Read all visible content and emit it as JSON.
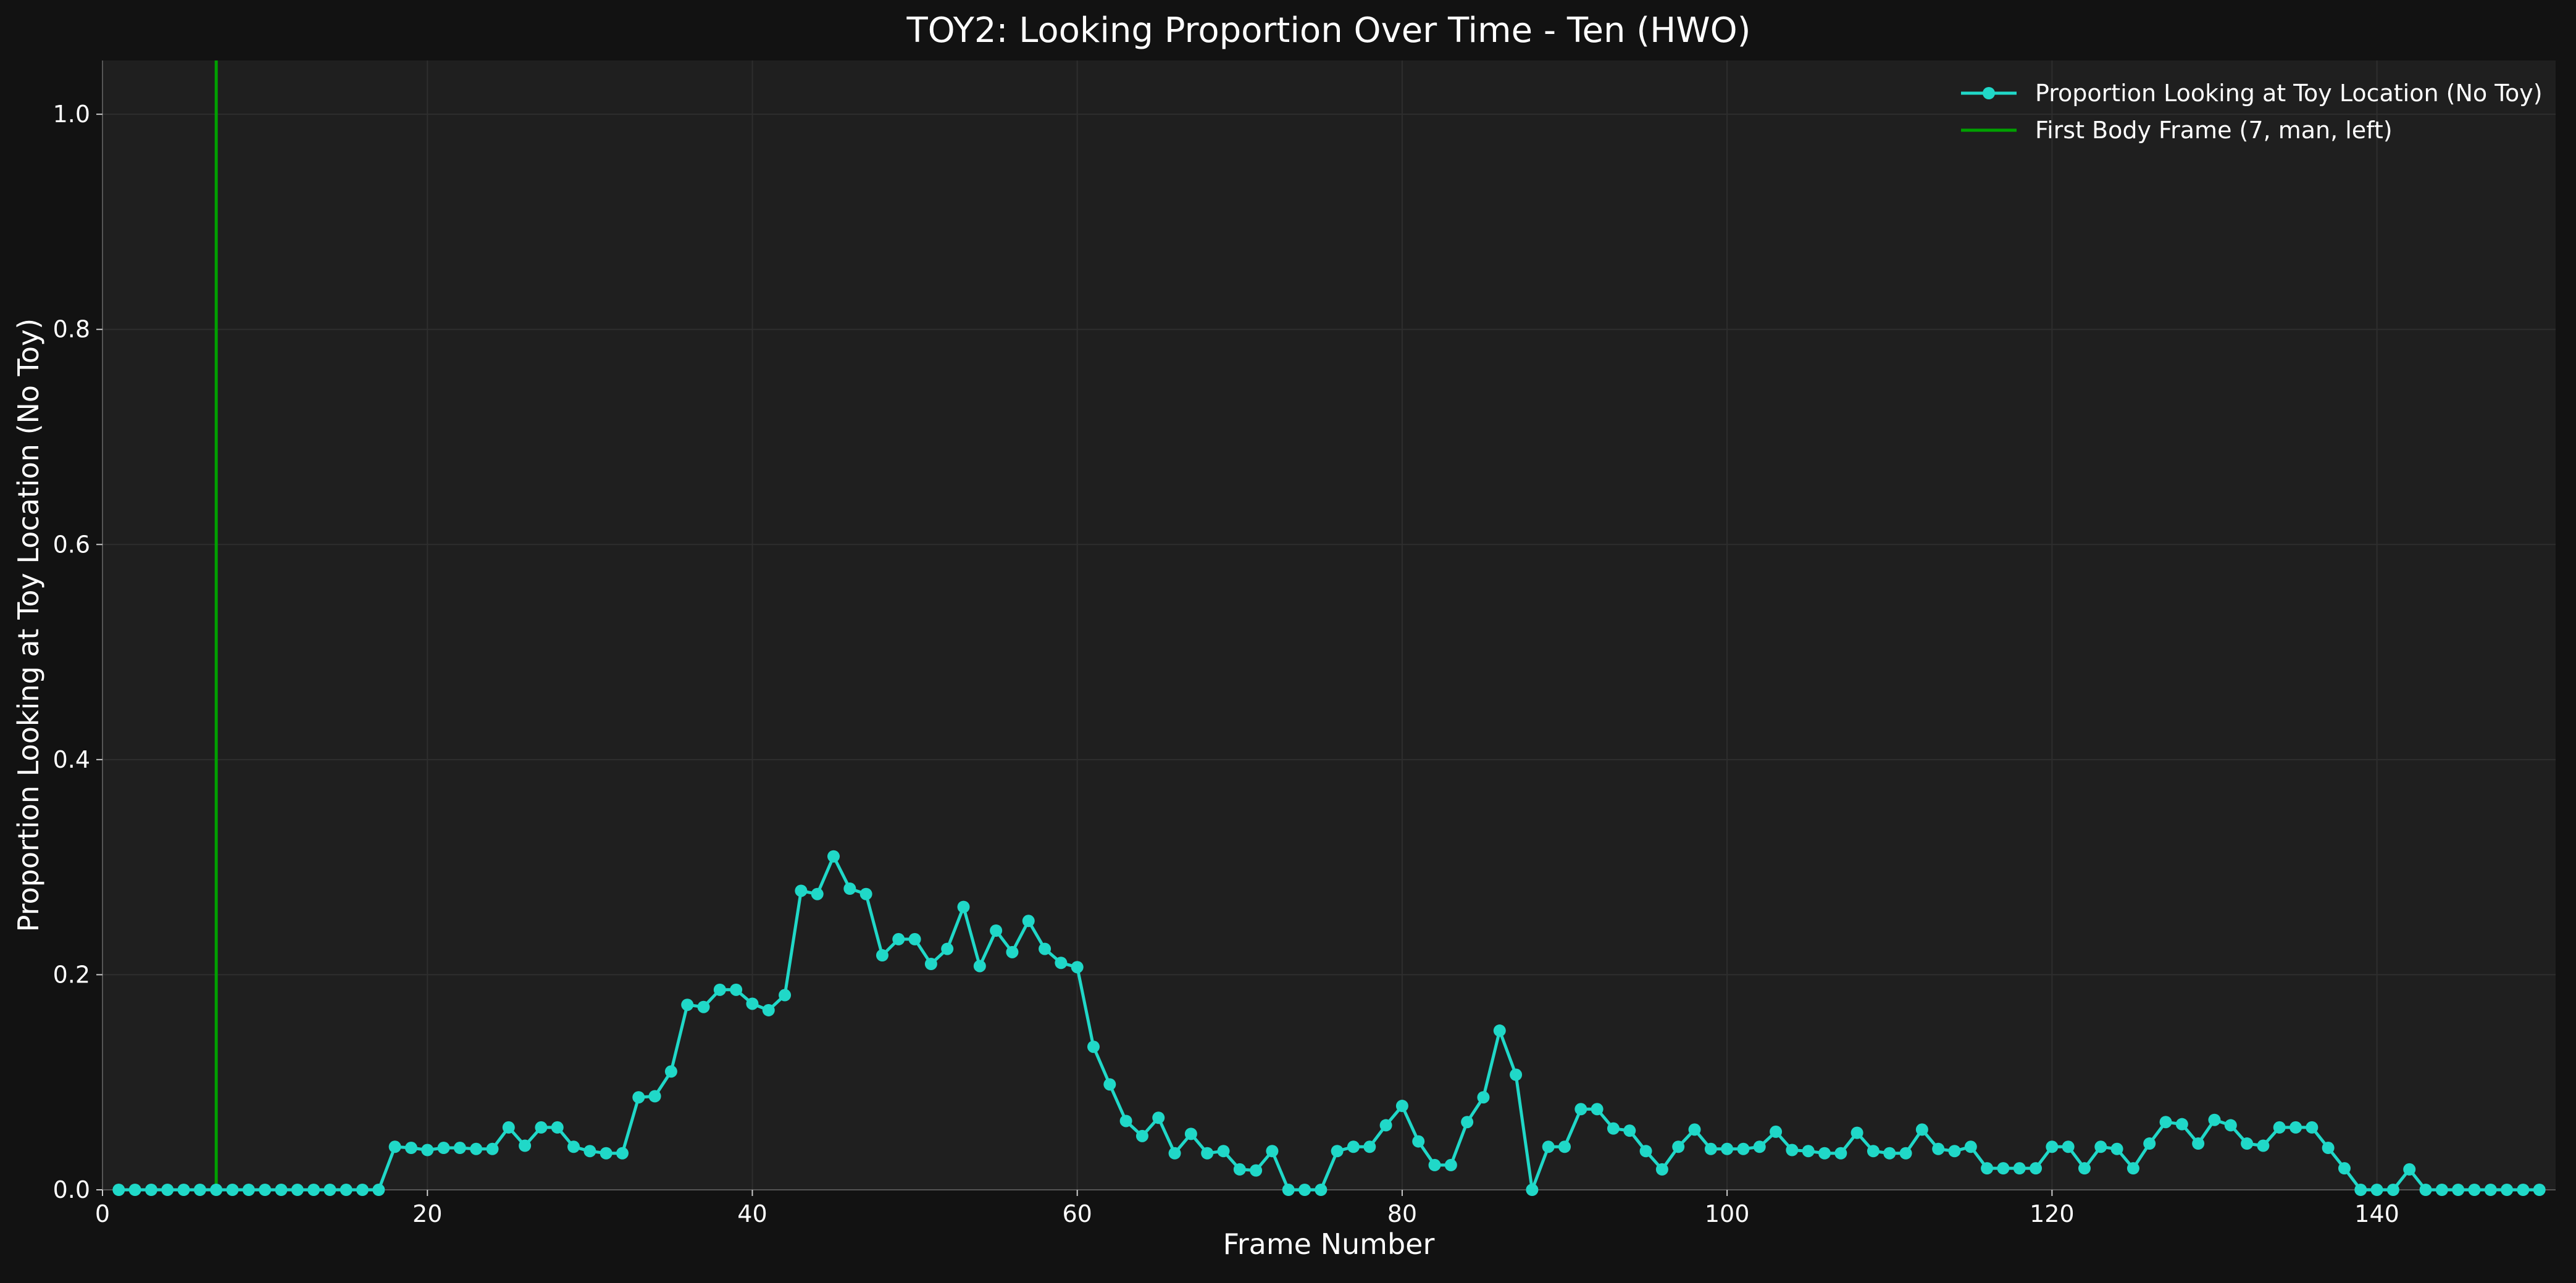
{
  "chart_data": {
    "type": "line",
    "title": "TOY2: Looking Proportion Over Time - Ten (HWO)",
    "xlabel": "Frame Number",
    "ylabel": "Proportion Looking at Toy Location (No Toy)",
    "xlim": [
      0,
      151
    ],
    "ylim": [
      0,
      1.05
    ],
    "xticks": [
      0,
      20,
      40,
      60,
      80,
      100,
      120,
      140
    ],
    "yticks": [
      0.0,
      0.2,
      0.4,
      0.6,
      0.8,
      1.0
    ],
    "xtick_labels": [
      "0",
      "20",
      "40",
      "60",
      "80",
      "100",
      "120",
      "140"
    ],
    "ytick_labels": [
      "0.0",
      "0.2",
      "0.4",
      "0.6",
      "0.8",
      "1.0"
    ],
    "grid": true,
    "legend_position": "top-right",
    "series": [
      {
        "name": "Proportion Looking at Toy Location (No Toy)",
        "color": "#20d8c8",
        "marker": "circle",
        "x": [
          1,
          2,
          3,
          4,
          5,
          6,
          7,
          8,
          9,
          10,
          11,
          12,
          13,
          14,
          15,
          16,
          17,
          18,
          19,
          20,
          21,
          22,
          23,
          24,
          25,
          26,
          27,
          28,
          29,
          30,
          31,
          32,
          33,
          34,
          35,
          36,
          37,
          38,
          39,
          40,
          41,
          42,
          43,
          44,
          45,
          46,
          47,
          48,
          49,
          50,
          51,
          52,
          53,
          54,
          55,
          56,
          57,
          58,
          59,
          60,
          61,
          62,
          63,
          64,
          65,
          66,
          67,
          68,
          69,
          70,
          71,
          72,
          73,
          74,
          75,
          76,
          77,
          78,
          79,
          80,
          81,
          82,
          83,
          84,
          85,
          86,
          87,
          88,
          89,
          90,
          91,
          92,
          93,
          94,
          95,
          96,
          97,
          98,
          99,
          100,
          101,
          102,
          103,
          104,
          105,
          106,
          107,
          108,
          109,
          110,
          111,
          112,
          113,
          114,
          115,
          116,
          117,
          118,
          119,
          120,
          121,
          122,
          123,
          124,
          125,
          126,
          127,
          128,
          129,
          130,
          131,
          132,
          133,
          134,
          135,
          136,
          137,
          138,
          139,
          140,
          141,
          142,
          143,
          144,
          145,
          146,
          147,
          148,
          149,
          150
        ],
        "y": [
          0,
          0,
          0,
          0,
          0,
          0,
          0,
          0,
          0,
          0,
          0,
          0,
          0,
          0,
          0,
          0,
          0,
          0.04,
          0.039,
          0.037,
          0.039,
          0.039,
          0.038,
          0.038,
          0.058,
          0.041,
          0.058,
          0.058,
          0.04,
          0.036,
          0.034,
          0.034,
          0.086,
          0.087,
          0.11,
          0.172,
          0.17,
          0.186,
          0.186,
          0.173,
          0.167,
          0.181,
          0.278,
          0.275,
          0.31,
          0.28,
          0.275,
          0.218,
          0.233,
          0.233,
          0.21,
          0.224,
          0.263,
          0.208,
          0.241,
          0.221,
          0.25,
          0.224,
          0.211,
          0.207,
          0.133,
          0.098,
          0.064,
          0.05,
          0.067,
          0.034,
          0.052,
          0.034,
          0.036,
          0.019,
          0.018,
          0.036,
          0,
          0,
          0,
          0.036,
          0.04,
          0.04,
          0.06,
          0.078,
          0.045,
          0.023,
          0.023,
          0.063,
          0.086,
          0.148,
          0.107,
          0,
          0.04,
          0.04,
          0.075,
          0.075,
          0.057,
          0.055,
          0.036,
          0.019,
          0.04,
          0.056,
          0.038,
          0.038,
          0.038,
          0.04,
          0.054,
          0.037,
          0.036,
          0.034,
          0.034,
          0.053,
          0.036,
          0.034,
          0.034,
          0.056,
          0.038,
          0.036,
          0.04,
          0.02,
          0.02,
          0.02,
          0.02,
          0.04,
          0.04,
          0.02,
          0.04,
          0.038,
          0.02,
          0.043,
          0.063,
          0.061,
          0.043,
          0.065,
          0.06,
          0.043,
          0.041,
          0.058,
          0.058,
          0.058,
          0.039,
          0.02,
          0,
          0,
          0,
          0.019,
          0,
          0,
          0,
          0,
          0,
          0,
          0,
          0
        ]
      },
      {
        "name": "First Body Frame (7, man, left)",
        "color": "#00a000",
        "type": "vline",
        "x": 7
      }
    ]
  }
}
